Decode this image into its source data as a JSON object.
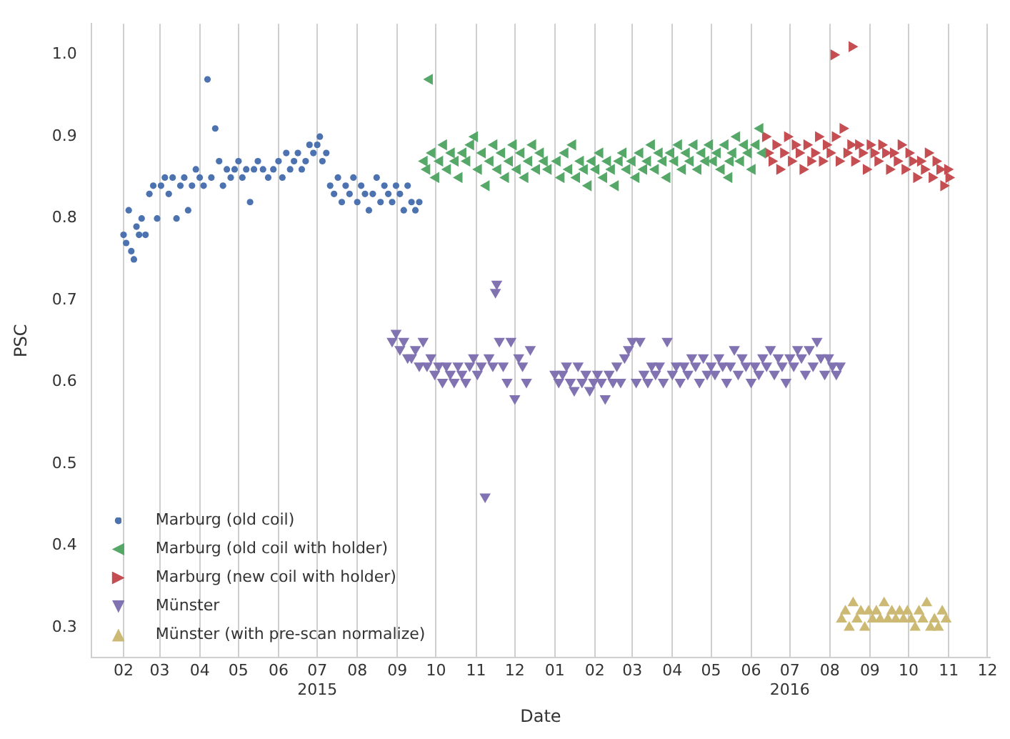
{
  "chart_data": {
    "type": "scatter",
    "xlabel": "Date",
    "ylabel": "PSC",
    "xlim": [
      "2015-01-07",
      "2016-12-03"
    ],
    "ylim": [
      0.263,
      1.038
    ],
    "xticks": [
      {
        "value": "2015-02",
        "label": "02"
      },
      {
        "value": "2015-03",
        "label": "03"
      },
      {
        "value": "2015-04",
        "label": "04"
      },
      {
        "value": "2015-05",
        "label": "05"
      },
      {
        "value": "2015-06",
        "label": "06"
      },
      {
        "value": "2015-07",
        "label": "07\n2015"
      },
      {
        "value": "2015-08",
        "label": "08"
      },
      {
        "value": "2015-09",
        "label": "09"
      },
      {
        "value": "2015-10",
        "label": "10"
      },
      {
        "value": "2015-11",
        "label": "11"
      },
      {
        "value": "2015-12",
        "label": "12"
      },
      {
        "value": "2016-01",
        "label": "01"
      },
      {
        "value": "2016-02",
        "label": "02"
      },
      {
        "value": "2016-03",
        "label": "03"
      },
      {
        "value": "2016-04",
        "label": "04"
      },
      {
        "value": "2016-05",
        "label": "05"
      },
      {
        "value": "2016-06",
        "label": "06"
      },
      {
        "value": "2016-07",
        "label": "07\n2016"
      },
      {
        "value": "2016-08",
        "label": "08"
      },
      {
        "value": "2016-09",
        "label": "09"
      },
      {
        "value": "2016-10",
        "label": "10"
      },
      {
        "value": "2016-11",
        "label": "11"
      },
      {
        "value": "2016-12",
        "label": "12"
      }
    ],
    "yticks": [
      0.3,
      0.4,
      0.5,
      0.6,
      0.7,
      0.8,
      0.9,
      {
        "value": 1,
        "label": "1.0"
      }
    ],
    "grid": "x",
    "legend": "bottom left",
    "series": [
      {
        "name": "Marburg (old coil)",
        "color": "#4c72b0",
        "marker": "circle",
        "x": [
          "2015-02-01",
          "2015-02-03",
          "2015-02-05",
          "2015-02-07",
          "2015-02-09",
          "2015-02-11",
          "2015-02-13",
          "2015-02-15",
          "2015-02-18",
          "2015-02-21",
          "2015-02-24",
          "2015-02-27",
          "2015-03-02",
          "2015-03-05",
          "2015-03-08",
          "2015-03-11",
          "2015-03-14",
          "2015-03-17",
          "2015-03-20",
          "2015-03-23",
          "2015-03-26",
          "2015-03-29",
          "2015-04-01",
          "2015-04-04",
          "2015-04-07",
          "2015-04-10",
          "2015-04-13",
          "2015-04-16",
          "2015-04-19",
          "2015-04-22",
          "2015-04-25",
          "2015-04-28",
          "2015-05-01",
          "2015-05-04",
          "2015-05-07",
          "2015-05-10",
          "2015-05-13",
          "2015-05-16",
          "2015-05-20",
          "2015-05-24",
          "2015-05-28",
          "2015-06-01",
          "2015-06-04",
          "2015-06-07",
          "2015-06-10",
          "2015-06-13",
          "2015-06-16",
          "2015-06-19",
          "2015-06-22",
          "2015-06-25",
          "2015-06-28",
          "2015-07-01",
          "2015-07-03",
          "2015-07-05",
          "2015-07-08",
          "2015-07-11",
          "2015-07-14",
          "2015-07-17",
          "2015-07-20",
          "2015-07-23",
          "2015-07-26",
          "2015-07-29",
          "2015-08-01",
          "2015-08-04",
          "2015-08-07",
          "2015-08-10",
          "2015-08-13",
          "2015-08-16",
          "2015-08-19",
          "2015-08-22",
          "2015-08-25",
          "2015-08-28",
          "2015-08-31",
          "2015-09-03",
          "2015-09-06",
          "2015-09-09",
          "2015-09-12",
          "2015-09-15",
          "2015-09-18"
        ],
        "values": [
          0.78,
          0.77,
          0.81,
          0.76,
          0.75,
          0.79,
          0.78,
          0.8,
          0.78,
          0.83,
          0.84,
          0.8,
          0.84,
          0.85,
          0.83,
          0.85,
          0.8,
          0.84,
          0.85,
          0.81,
          0.84,
          0.86,
          0.85,
          0.84,
          0.97,
          0.85,
          0.91,
          0.87,
          0.84,
          0.86,
          0.85,
          0.86,
          0.87,
          0.85,
          0.86,
          0.82,
          0.86,
          0.87,
          0.86,
          0.85,
          0.86,
          0.87,
          0.85,
          0.88,
          0.86,
          0.87,
          0.88,
          0.86,
          0.87,
          0.89,
          0.88,
          0.89,
          0.9,
          0.87,
          0.88,
          0.84,
          0.83,
          0.85,
          0.82,
          0.84,
          0.83,
          0.85,
          0.82,
          0.84,
          0.83,
          0.81,
          0.83,
          0.85,
          0.82,
          0.84,
          0.83,
          0.82,
          0.84,
          0.83,
          0.81,
          0.84,
          0.82,
          0.81,
          0.82
        ]
      },
      {
        "name": "Marburg (old coil with holder)",
        "color": "#55a868",
        "marker": "triangle-left",
        "x": [
          "2015-09-22",
          "2015-09-24",
          "2015-09-26",
          "2015-09-28",
          "2015-10-01",
          "2015-10-04",
          "2015-10-07",
          "2015-10-10",
          "2015-10-13",
          "2015-10-16",
          "2015-10-19",
          "2015-10-22",
          "2015-10-25",
          "2015-10-28",
          "2015-10-31",
          "2015-11-03",
          "2015-11-06",
          "2015-11-09",
          "2015-11-12",
          "2015-11-15",
          "2015-11-18",
          "2015-11-21",
          "2015-11-24",
          "2015-11-27",
          "2015-11-30",
          "2015-12-03",
          "2015-12-06",
          "2015-12-09",
          "2015-12-12",
          "2015-12-15",
          "2015-12-18",
          "2015-12-21",
          "2015-12-24",
          "2015-12-27",
          "2016-01-03",
          "2016-01-06",
          "2016-01-09",
          "2016-01-12",
          "2016-01-15",
          "2016-01-18",
          "2016-01-21",
          "2016-01-24",
          "2016-01-27",
          "2016-01-30",
          "2016-02-02",
          "2016-02-05",
          "2016-02-08",
          "2016-02-11",
          "2016-02-14",
          "2016-02-17",
          "2016-02-20",
          "2016-02-23",
          "2016-02-26",
          "2016-03-01",
          "2016-03-04",
          "2016-03-07",
          "2016-03-10",
          "2016-03-13",
          "2016-03-16",
          "2016-03-19",
          "2016-03-22",
          "2016-03-25",
          "2016-03-28",
          "2016-03-31",
          "2016-04-03",
          "2016-04-06",
          "2016-04-09",
          "2016-04-12",
          "2016-04-15",
          "2016-04-18",
          "2016-04-21",
          "2016-04-24",
          "2016-04-27",
          "2016-04-30",
          "2016-05-03",
          "2016-05-06",
          "2016-05-09",
          "2016-05-12",
          "2016-05-15",
          "2016-05-16",
          "2016-05-18",
          "2016-05-21",
          "2016-05-24",
          "2016-05-27",
          "2016-05-30",
          "2016-06-02",
          "2016-06-05",
          "2016-06-08",
          "2016-06-10"
        ],
        "values": [
          0.87,
          0.86,
          0.97,
          0.88,
          0.85,
          0.87,
          0.89,
          0.86,
          0.88,
          0.87,
          0.85,
          0.88,
          0.87,
          0.89,
          0.9,
          0.86,
          0.88,
          0.84,
          0.87,
          0.89,
          0.86,
          0.88,
          0.85,
          0.87,
          0.89,
          0.86,
          0.88,
          0.85,
          0.87,
          0.89,
          0.86,
          0.88,
          0.87,
          0.86,
          0.87,
          0.85,
          0.88,
          0.86,
          0.89,
          0.85,
          0.87,
          0.86,
          0.84,
          0.87,
          0.86,
          0.88,
          0.85,
          0.87,
          0.86,
          0.84,
          0.87,
          0.88,
          0.86,
          0.87,
          0.85,
          0.88,
          0.86,
          0.87,
          0.89,
          0.86,
          0.88,
          0.87,
          0.85,
          0.88,
          0.87,
          0.89,
          0.86,
          0.88,
          0.87,
          0.89,
          0.86,
          0.88,
          0.87,
          0.89,
          0.87,
          0.88,
          0.86,
          0.89,
          0.85,
          0.87,
          0.88,
          0.9,
          0.87,
          0.89,
          0.88,
          0.86,
          0.89,
          0.91,
          0.88
        ]
      },
      {
        "name": "Marburg (new coil with holder)",
        "color": "#c44e52",
        "marker": "triangle-right",
        "x": [
          "2016-06-12",
          "2016-06-14",
          "2016-06-17",
          "2016-06-20",
          "2016-06-23",
          "2016-06-26",
          "2016-06-29",
          "2016-07-02",
          "2016-07-05",
          "2016-07-08",
          "2016-07-11",
          "2016-07-14",
          "2016-07-17",
          "2016-07-20",
          "2016-07-23",
          "2016-07-26",
          "2016-07-29",
          "2016-08-01",
          "2016-08-04",
          "2016-08-05",
          "2016-08-08",
          "2016-08-11",
          "2016-08-14",
          "2016-08-17",
          "2016-08-18",
          "2016-08-20",
          "2016-08-23",
          "2016-08-26",
          "2016-08-29",
          "2016-09-01",
          "2016-09-04",
          "2016-09-07",
          "2016-09-10",
          "2016-09-13",
          "2016-09-16",
          "2016-09-19",
          "2016-09-22",
          "2016-09-25",
          "2016-09-28",
          "2016-10-01",
          "2016-10-04",
          "2016-10-07",
          "2016-10-10",
          "2016-10-13",
          "2016-10-16",
          "2016-10-19",
          "2016-10-22",
          "2016-10-25",
          "2016-10-28",
          "2016-10-31",
          "2016-11-01"
        ],
        "values": [
          0.9,
          0.88,
          0.87,
          0.89,
          0.86,
          0.88,
          0.9,
          0.87,
          0.89,
          0.88,
          0.86,
          0.89,
          0.87,
          0.88,
          0.9,
          0.87,
          0.89,
          0.88,
          1.0,
          0.9,
          0.87,
          0.91,
          0.88,
          0.89,
          1.01,
          0.87,
          0.89,
          0.88,
          0.86,
          0.89,
          0.88,
          0.87,
          0.89,
          0.88,
          0.86,
          0.88,
          0.87,
          0.89,
          0.86,
          0.88,
          0.87,
          0.85,
          0.87,
          0.86,
          0.88,
          0.85,
          0.87,
          0.86,
          0.84,
          0.86,
          0.85
        ]
      },
      {
        "name": "Münster",
        "color": "#8172b2",
        "marker": "triangle-down",
        "x": [
          "2015-08-28",
          "2015-08-31",
          "2015-09-03",
          "2015-09-06",
          "2015-09-09",
          "2015-09-12",
          "2015-09-15",
          "2015-09-18",
          "2015-09-21",
          "2015-09-24",
          "2015-09-27",
          "2015-09-30",
          "2015-10-03",
          "2015-10-06",
          "2015-10-09",
          "2015-10-12",
          "2015-10-15",
          "2015-10-18",
          "2015-10-21",
          "2015-10-24",
          "2015-10-27",
          "2015-10-30",
          "2015-11-02",
          "2015-11-05",
          "2015-11-08",
          "2015-11-11",
          "2015-11-14",
          "2015-11-16",
          "2015-11-17",
          "2015-11-19",
          "2015-11-22",
          "2015-11-25",
          "2015-11-28",
          "2015-12-01",
          "2015-12-04",
          "2015-12-07",
          "2015-12-10",
          "2015-12-13",
          "2016-01-01",
          "2016-01-04",
          "2016-01-07",
          "2016-01-10",
          "2016-01-13",
          "2016-01-16",
          "2016-01-19",
          "2016-01-22",
          "2016-01-25",
          "2016-01-28",
          "2016-01-31",
          "2016-02-03",
          "2016-02-06",
          "2016-02-09",
          "2016-02-12",
          "2016-02-15",
          "2016-02-18",
          "2016-02-21",
          "2016-02-24",
          "2016-02-27",
          "2016-03-01",
          "2016-03-04",
          "2016-03-07",
          "2016-03-10",
          "2016-03-13",
          "2016-03-16",
          "2016-03-19",
          "2016-03-22",
          "2016-03-25",
          "2016-03-28",
          "2016-04-01",
          "2016-04-04",
          "2016-04-07",
          "2016-04-10",
          "2016-04-13",
          "2016-04-16",
          "2016-04-19",
          "2016-04-22",
          "2016-04-25",
          "2016-04-28",
          "2016-05-01",
          "2016-05-04",
          "2016-05-07",
          "2016-05-10",
          "2016-05-13",
          "2016-05-16",
          "2016-05-19",
          "2016-05-22",
          "2016-05-25",
          "2016-05-28",
          "2016-06-01",
          "2016-06-04",
          "2016-06-07",
          "2016-06-10",
          "2016-06-13",
          "2016-06-16",
          "2016-06-19",
          "2016-06-22",
          "2016-06-25",
          "2016-06-28",
          "2016-07-01",
          "2016-07-04",
          "2016-07-07",
          "2016-07-10",
          "2016-07-13",
          "2016-07-16",
          "2016-07-19",
          "2016-07-22",
          "2016-07-25",
          "2016-07-28",
          "2016-07-31",
          "2016-08-03",
          "2016-08-06",
          "2016-08-09"
        ],
        "values": [
          0.65,
          0.66,
          0.64,
          0.65,
          0.63,
          0.63,
          0.64,
          0.62,
          0.65,
          0.62,
          0.63,
          0.61,
          0.62,
          0.6,
          0.62,
          0.61,
          0.6,
          0.62,
          0.61,
          0.6,
          0.62,
          0.63,
          0.61,
          0.62,
          0.46,
          0.63,
          0.62,
          0.71,
          0.72,
          0.65,
          0.62,
          0.6,
          0.65,
          0.58,
          0.63,
          0.62,
          0.6,
          0.64,
          0.61,
          0.6,
          0.61,
          0.62,
          0.6,
          0.59,
          0.62,
          0.6,
          0.61,
          0.59,
          0.6,
          0.61,
          0.6,
          0.58,
          0.61,
          0.6,
          0.62,
          0.6,
          0.63,
          0.64,
          0.65,
          0.6,
          0.65,
          0.61,
          0.6,
          0.62,
          0.61,
          0.62,
          0.6,
          0.65,
          0.61,
          0.62,
          0.6,
          0.62,
          0.61,
          0.63,
          0.62,
          0.6,
          0.63,
          0.61,
          0.62,
          0.61,
          0.63,
          0.62,
          0.6,
          0.62,
          0.64,
          0.61,
          0.63,
          0.62,
          0.6,
          0.62,
          0.61,
          0.63,
          0.62,
          0.64,
          0.61,
          0.63,
          0.62,
          0.6,
          0.63,
          0.62,
          0.64,
          0.63,
          0.61,
          0.64,
          0.62,
          0.65,
          0.63,
          0.61,
          0.63,
          0.62,
          0.61,
          0.62
        ]
      },
      {
        "name": "Münster (with pre-scan normalize)",
        "color": "#ccb974",
        "marker": "triangle-up",
        "x": [
          "2016-08-10",
          "2016-08-13",
          "2016-08-16",
          "2016-08-19",
          "2016-08-22",
          "2016-08-25",
          "2016-08-28",
          "2016-08-31",
          "2016-09-03",
          "2016-09-06",
          "2016-09-09",
          "2016-09-12",
          "2016-09-15",
          "2016-09-18",
          "2016-09-21",
          "2016-09-24",
          "2016-09-27",
          "2016-09-30",
          "2016-10-03",
          "2016-10-06",
          "2016-10-09",
          "2016-10-12",
          "2016-10-15",
          "2016-10-18",
          "2016-10-21",
          "2016-10-24",
          "2016-10-27",
          "2016-10-30"
        ],
        "values": [
          0.31,
          0.32,
          0.3,
          0.33,
          0.31,
          0.32,
          0.3,
          0.32,
          0.31,
          0.32,
          0.31,
          0.33,
          0.31,
          0.32,
          0.31,
          0.32,
          0.31,
          0.32,
          0.31,
          0.3,
          0.32,
          0.31,
          0.33,
          0.3,
          0.31,
          0.3,
          0.32,
          0.31
        ]
      }
    ]
  }
}
